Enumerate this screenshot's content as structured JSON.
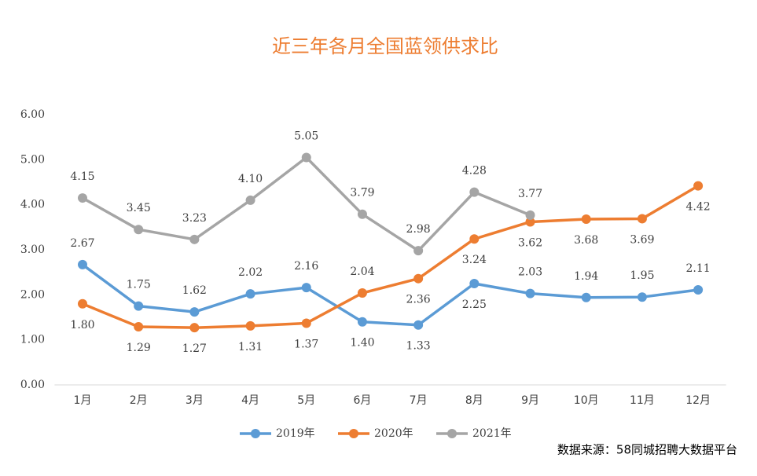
{
  "chart_data": {
    "type": "line",
    "title": "近三年各月全国蓝领供求比",
    "categories": [
      "1月",
      "2月",
      "3月",
      "4月",
      "5月",
      "6月",
      "7月",
      "8月",
      "9月",
      "10月",
      "11月",
      "12月"
    ],
    "series": [
      {
        "name": "2019年",
        "color": "#5b9bd5",
        "values": [
          2.67,
          1.75,
          1.62,
          2.02,
          2.16,
          1.4,
          1.33,
          2.25,
          2.03,
          1.94,
          1.95,
          2.11
        ],
        "value_labels": [
          "2.67",
          "1.75",
          "1.62",
          "2.02",
          "2.16",
          "1.40",
          "1.33",
          "2.25",
          "2.03",
          "1.94",
          "1.95",
          "2.11"
        ]
      },
      {
        "name": "2020年",
        "color": "#ed7d31",
        "values": [
          1.8,
          1.29,
          1.27,
          1.31,
          1.37,
          2.04,
          2.36,
          3.24,
          3.62,
          3.68,
          3.69,
          4.42
        ],
        "value_labels": [
          "1.80",
          "1.29",
          "1.27",
          "1.31",
          "1.37",
          "2.04",
          "2.36",
          "3.24",
          "3.62",
          "3.68",
          "3.69",
          "4.42"
        ]
      },
      {
        "name": "2021年",
        "color": "#a5a5a5",
        "values": [
          4.15,
          3.45,
          3.23,
          4.1,
          5.05,
          3.79,
          2.98,
          4.28,
          3.77,
          null,
          null,
          null
        ],
        "value_labels": [
          "4.15",
          "3.45",
          "3.23",
          "4.10",
          "5.05",
          "3.79",
          "2.98",
          "4.28",
          "3.77",
          null,
          null,
          null
        ]
      }
    ],
    "ylim": [
      0,
      6
    ],
    "yticks": [
      {
        "value": 0,
        "label": "0.00"
      },
      {
        "value": 1,
        "label": "1.00"
      },
      {
        "value": 2,
        "label": "2.00"
      },
      {
        "value": 3,
        "label": "3.00"
      },
      {
        "value": 4,
        "label": "4.00"
      },
      {
        "value": 5,
        "label": "5.00"
      },
      {
        "value": 6,
        "label": "6.00"
      }
    ],
    "grid": false,
    "legend": "bottom",
    "source": "数据来源：58同城招聘大数据平台"
  }
}
